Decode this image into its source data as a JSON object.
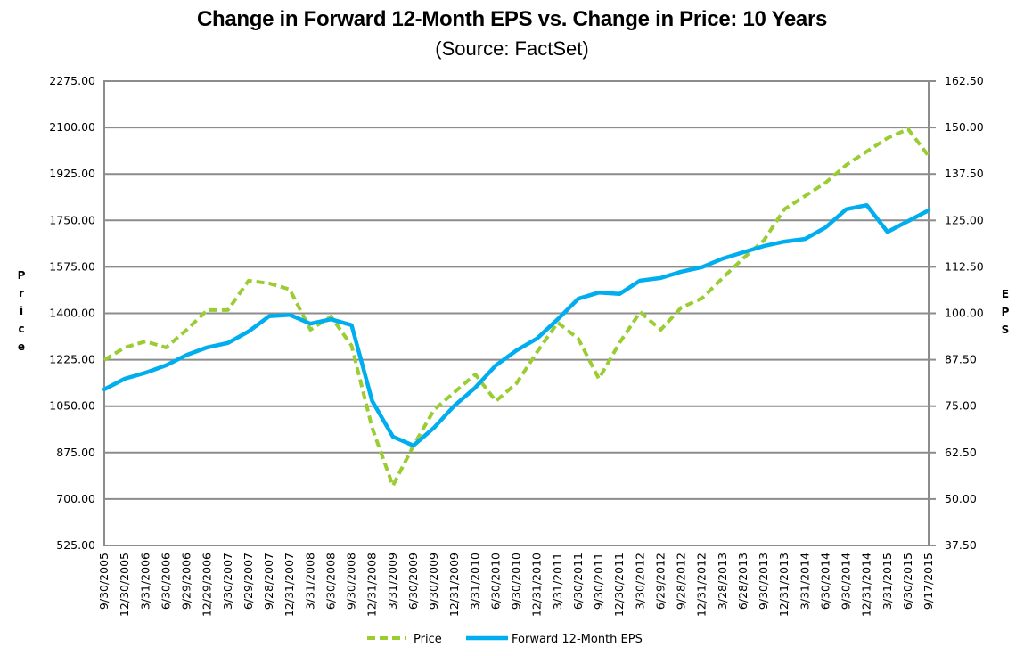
{
  "chart_data": {
    "type": "line",
    "title": "Change in Forward 12-Month EPS vs. Change in Price: 10 Years",
    "subtitle": "(Source: FactSet)",
    "ylabel_left": [
      "P",
      "r",
      "i",
      "c",
      "e"
    ],
    "ylabel_right": [
      "E",
      "P",
      "S"
    ],
    "ylim_left": [
      525,
      2275
    ],
    "ylim_right": [
      37.5,
      162.5
    ],
    "yticks_left": [
      "525.00",
      "700.00",
      "875.00",
      "1050.00",
      "1225.00",
      "1400.00",
      "1575.00",
      "1750.00",
      "1925.00",
      "2100.00",
      "2275.00"
    ],
    "yticks_right": [
      "37.50",
      "50.00",
      "62.50",
      "75.00",
      "87.50",
      "100.00",
      "112.50",
      "125.00",
      "137.50",
      "150.00",
      "162.50"
    ],
    "grid": true,
    "legend_position": "bottom",
    "categories": [
      "9/30/2005",
      "12/30/2005",
      "3/31/2006",
      "6/30/2006",
      "9/29/2006",
      "12/29/2006",
      "3/30/2007",
      "6/29/2007",
      "9/28/2007",
      "12/31/2007",
      "3/31/2008",
      "6/30/2008",
      "9/30/2008",
      "12/31/2008",
      "3/31/2009",
      "6/30/2009",
      "9/30/2009",
      "12/31/2009",
      "3/31/2010",
      "6/30/2010",
      "9/30/2010",
      "12/31/2010",
      "3/31/2011",
      "6/30/2011",
      "9/30/2011",
      "12/30/2011",
      "3/30/2012",
      "6/29/2012",
      "9/28/2012",
      "12/31/2012",
      "3/28/2013",
      "6/28/2013",
      "9/30/2013",
      "12/31/2013",
      "3/31/2014",
      "6/30/2014",
      "9/30/2014",
      "12/31/2014",
      "3/31/2015",
      "6/30/2015",
      "9/17/2015"
    ],
    "series": [
      {
        "name": "Price",
        "axis": "left",
        "color": "#9ACD32",
        "style": "dashed",
        "values": [
          1224,
          1271,
          1294,
          1271,
          1338,
          1412,
          1412,
          1523,
          1513,
          1490,
          1338,
          1388,
          1278,
          968,
          750,
          901,
          1036,
          1103,
          1170,
          1069,
          1136,
          1254,
          1365,
          1304,
          1153,
          1288,
          1405,
          1338,
          1422,
          1456,
          1533,
          1607,
          1674,
          1792,
          1842,
          1892,
          1959,
          2010,
          2060,
          2094,
          1993
        ]
      },
      {
        "name": "Forward 12-Month EPS",
        "axis": "right",
        "color": "#00AEEF",
        "style": "solid",
        "values": [
          79.5,
          82.4,
          84.0,
          86.0,
          88.8,
          90.8,
          92.0,
          95.1,
          99.2,
          99.6,
          97.2,
          98.4,
          96.8,
          76.4,
          66.8,
          64.4,
          69.2,
          75.2,
          80.0,
          86.0,
          90.0,
          93.2,
          98.4,
          103.9,
          105.6,
          105.2,
          108.8,
          109.5,
          111.2,
          112.4,
          114.7,
          116.4,
          118.1,
          119.3,
          120.0,
          123.1,
          128.0,
          129.1,
          121.9,
          124.8,
          127.7
        ]
      }
    ]
  }
}
